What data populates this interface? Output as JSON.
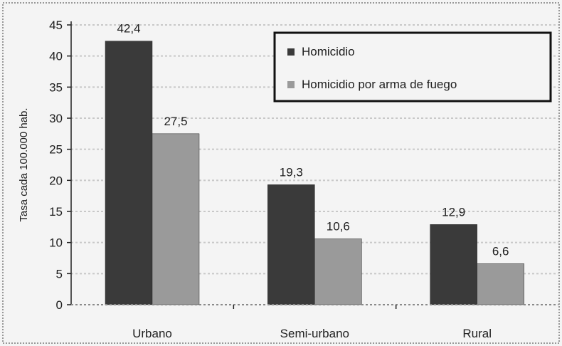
{
  "chart_data": {
    "type": "bar",
    "categories": [
      "Urbano",
      "Semi-urbano",
      "Rural"
    ],
    "series": [
      {
        "name": "Homicidio",
        "values": [
          42.4,
          19.3,
          12.9
        ],
        "labels": [
          "42,4",
          "19,3",
          "12,9"
        ],
        "color": "#3a3a3a"
      },
      {
        "name": "Homicidio por arma de fuego",
        "values": [
          27.5,
          10.6,
          6.6
        ],
        "labels": [
          "27,5",
          "10,6",
          "6,6"
        ],
        "color": "#9a9a9a"
      }
    ],
    "ylabel": "Tasa cada 100.000 hab.",
    "ylim": [
      0,
      45
    ],
    "yticks": [
      0,
      5,
      10,
      15,
      20,
      25,
      30,
      35,
      40,
      45
    ],
    "grid": true,
    "legend_position": "top-right",
    "colors": {
      "background": "#f4f4f4",
      "grid": "#c8c8c8",
      "axis": "#202020",
      "legend_border": "#111111"
    }
  }
}
